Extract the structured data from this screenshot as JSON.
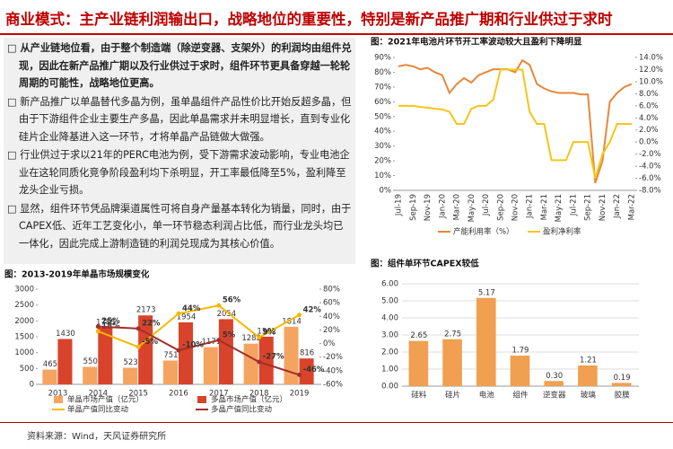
{
  "header": {
    "title": "商业模式：主产业链利润输出口，战略地位的重要性，特别是新产品推广期和行业供过于求时"
  },
  "bullets": [
    "从产业链地位看，由于整个制造端（除逆变器、支架外）的利润均由组件兑现，因此在新产品推广期以及行业供过于求时，组件环节更具备穿越一轮轮周期的可能性，战略地位更高。",
    "新产品推广以单晶替代多晶为例，虽单晶组件产品性价比开始反超多晶，但由于下游组件企业主要生产多晶，因此单晶需求并未明显增长，直到专业化硅片企业降基进入这一环节，才将单晶产品链做大做强。",
    "行业供过于求以21年的PERC电池为例，受下游需求波动影响，专业电池企业在这轮同质化竞争阶段盈利均下杀明显，开工率最低降至5%，盈利降至龙头企业亏损。",
    "显然，组件环节凭品牌渠道属性可将自身产量基本转化为销量，同时，由于CAPEX低、近年工艺变化小，单一环节稳态利润占比低，而行业龙头均已一体化，因此完成上游制造链的利润兑现成为其核心价值。"
  ],
  "source": "资料来源：Wind，天风证券研究所",
  "chart_data": [
    {
      "type": "line",
      "title": "图：2021年电池片环节开工率波动较大且盈利下降明显",
      "categories": [
        "Jul-19",
        null,
        "Sep-19",
        null,
        "Nov-19",
        null,
        "Jan-20",
        null,
        "Mar-20",
        null,
        "May-20",
        null,
        "Jul-20",
        null,
        "Sep-20",
        null,
        "Nov-20",
        null,
        "Jan-21",
        null,
        "Mar-21",
        null,
        "May-21",
        null,
        "Jul-21",
        null,
        "Sep-21",
        null,
        "Nov-21",
        null,
        "Jan-22",
        null,
        "Mar-22"
      ],
      "series": [
        {
          "name": "产能利用率（%）",
          "color": "#e8873a",
          "values": [
            84,
            85,
            84,
            82,
            83,
            80,
            78,
            66,
            72,
            76,
            73,
            78,
            80,
            82,
            82,
            82,
            80,
            88,
            85,
            72,
            69,
            67,
            66,
            66,
            66,
            65,
            65,
            5,
            20,
            60,
            66,
            70,
            72
          ]
        },
        {
          "name": "盈利净利率",
          "color": "#f5c518",
          "axis": "y2",
          "values": [
            6,
            6,
            6,
            5.8,
            5.7,
            5.5,
            5.4,
            5,
            3,
            3,
            5.5,
            6,
            6,
            7,
            12,
            12,
            12,
            12,
            5,
            3,
            3,
            -3,
            -3,
            -3,
            0,
            0,
            0,
            -6,
            -2,
            0,
            3,
            3,
            3
          ]
        }
      ],
      "ylim": [
        0,
        90
      ],
      "yticks": [
        {
          "value": 0,
          "label": "0%"
        },
        {
          "value": 10,
          "label": "10%"
        },
        {
          "value": 20,
          "label": "20%"
        },
        {
          "value": 30,
          "label": "30%"
        },
        {
          "value": 40,
          "label": "40%"
        },
        {
          "value": 50,
          "label": "50%"
        },
        {
          "value": 60,
          "label": "60%"
        },
        {
          "value": 70,
          "label": "70%"
        },
        {
          "value": 80,
          "label": "80%"
        },
        {
          "value": 90,
          "label": "90%"
        }
      ],
      "y2lim": [
        -8,
        14
      ],
      "y2ticks": [
        {
          "value": -8,
          "label": "-8.0%"
        },
        {
          "value": -6,
          "label": "-6.0%"
        },
        {
          "value": -4,
          "label": "-4.0%"
        },
        {
          "value": -2,
          "label": "-2.0%"
        },
        {
          "value": 0,
          "label": "0.0%"
        },
        {
          "value": 2,
          "label": "2.0%"
        },
        {
          "value": 4,
          "label": "4.0%"
        },
        {
          "value": 6,
          "label": "6.0%"
        },
        {
          "value": 8,
          "label": "8.0%"
        },
        {
          "value": 10,
          "label": "10.0%"
        },
        {
          "value": 12,
          "label": "12.0%"
        },
        {
          "value": 14,
          "label": "14.0%"
        }
      ],
      "grid": false
    },
    {
      "type": "bar",
      "title": "图：2013-2019年单晶市场规模变化",
      "categories": [
        "2013",
        "2014",
        "2015",
        "2016",
        "2017",
        "2018",
        "2019"
      ],
      "series": [
        {
          "name": "单晶市场产值（亿元）",
          "color": "#f4a460",
          "type": "bar",
          "values": [
            465,
            550,
            523,
            751,
            1171,
            1282,
            1814
          ]
        },
        {
          "name": "多晶市场产值（亿元）",
          "color": "#d9432b",
          "type": "bar",
          "values": [
            1430,
            1785,
            2173,
            1954,
            2054,
            1502,
            816
          ]
        },
        {
          "name": "单晶产值同比变动",
          "color": "#f5b800",
          "type": "line",
          "axis": "y2",
          "values": [
            null,
            18,
            -5,
            44,
            56,
            9,
            42
          ],
          "value_labels": [
            null,
            "18%",
            "-5%",
            "44%",
            "56%",
            "9%",
            "42%"
          ]
        },
        {
          "name": "多晶产值同比变动",
          "color": "#a0302a",
          "type": "line",
          "axis": "y2",
          "values": [
            null,
            25,
            22,
            -10,
            5,
            -27,
            -46
          ],
          "value_labels": [
            null,
            "25%",
            "22%",
            "-10%",
            "5%",
            "-27%",
            "-46%"
          ]
        }
      ],
      "ylim": [
        0,
        3000
      ],
      "yticks": [
        0,
        500,
        1000,
        1500,
        2000,
        2500,
        3000
      ],
      "y2lim": [
        -60,
        80
      ],
      "y2ticks": [
        {
          "value": -60,
          "label": "-60%"
        },
        {
          "value": -40,
          "label": "-40%"
        },
        {
          "value": -20,
          "label": "-20%"
        },
        {
          "value": 0,
          "label": "0%"
        },
        {
          "value": 20,
          "label": "20%"
        },
        {
          "value": 40,
          "label": "40%"
        },
        {
          "value": 60,
          "label": "60%"
        },
        {
          "value": 80,
          "label": "80%"
        }
      ],
      "show_values": true,
      "grid": false
    },
    {
      "type": "bar",
      "title": "图：组件单环节CAPEX较低",
      "categories": [
        "硅料",
        "硅片",
        "电池",
        "组件",
        "逆变器",
        "玻璃",
        "胶膜"
      ],
      "values": [
        2.65,
        2.75,
        5.17,
        1.79,
        0.3,
        1.21,
        0.19
      ],
      "value_labels": [
        "2.65",
        "2.75",
        "5.17",
        "1.79",
        "0.30",
        "1.21",
        "0.19"
      ],
      "color": "#f0a050",
      "ylim": [
        0,
        6
      ],
      "yticks": [
        {
          "value": 0,
          "label": "0.00"
        },
        {
          "value": 1,
          "label": "1.00"
        },
        {
          "value": 2,
          "label": "2.00"
        },
        {
          "value": 3,
          "label": "3.00"
        },
        {
          "value": 4,
          "label": "4.00"
        },
        {
          "value": 5,
          "label": "5.00"
        },
        {
          "value": 6,
          "label": "6.00"
        }
      ],
      "show_values": true,
      "grid": true
    }
  ]
}
